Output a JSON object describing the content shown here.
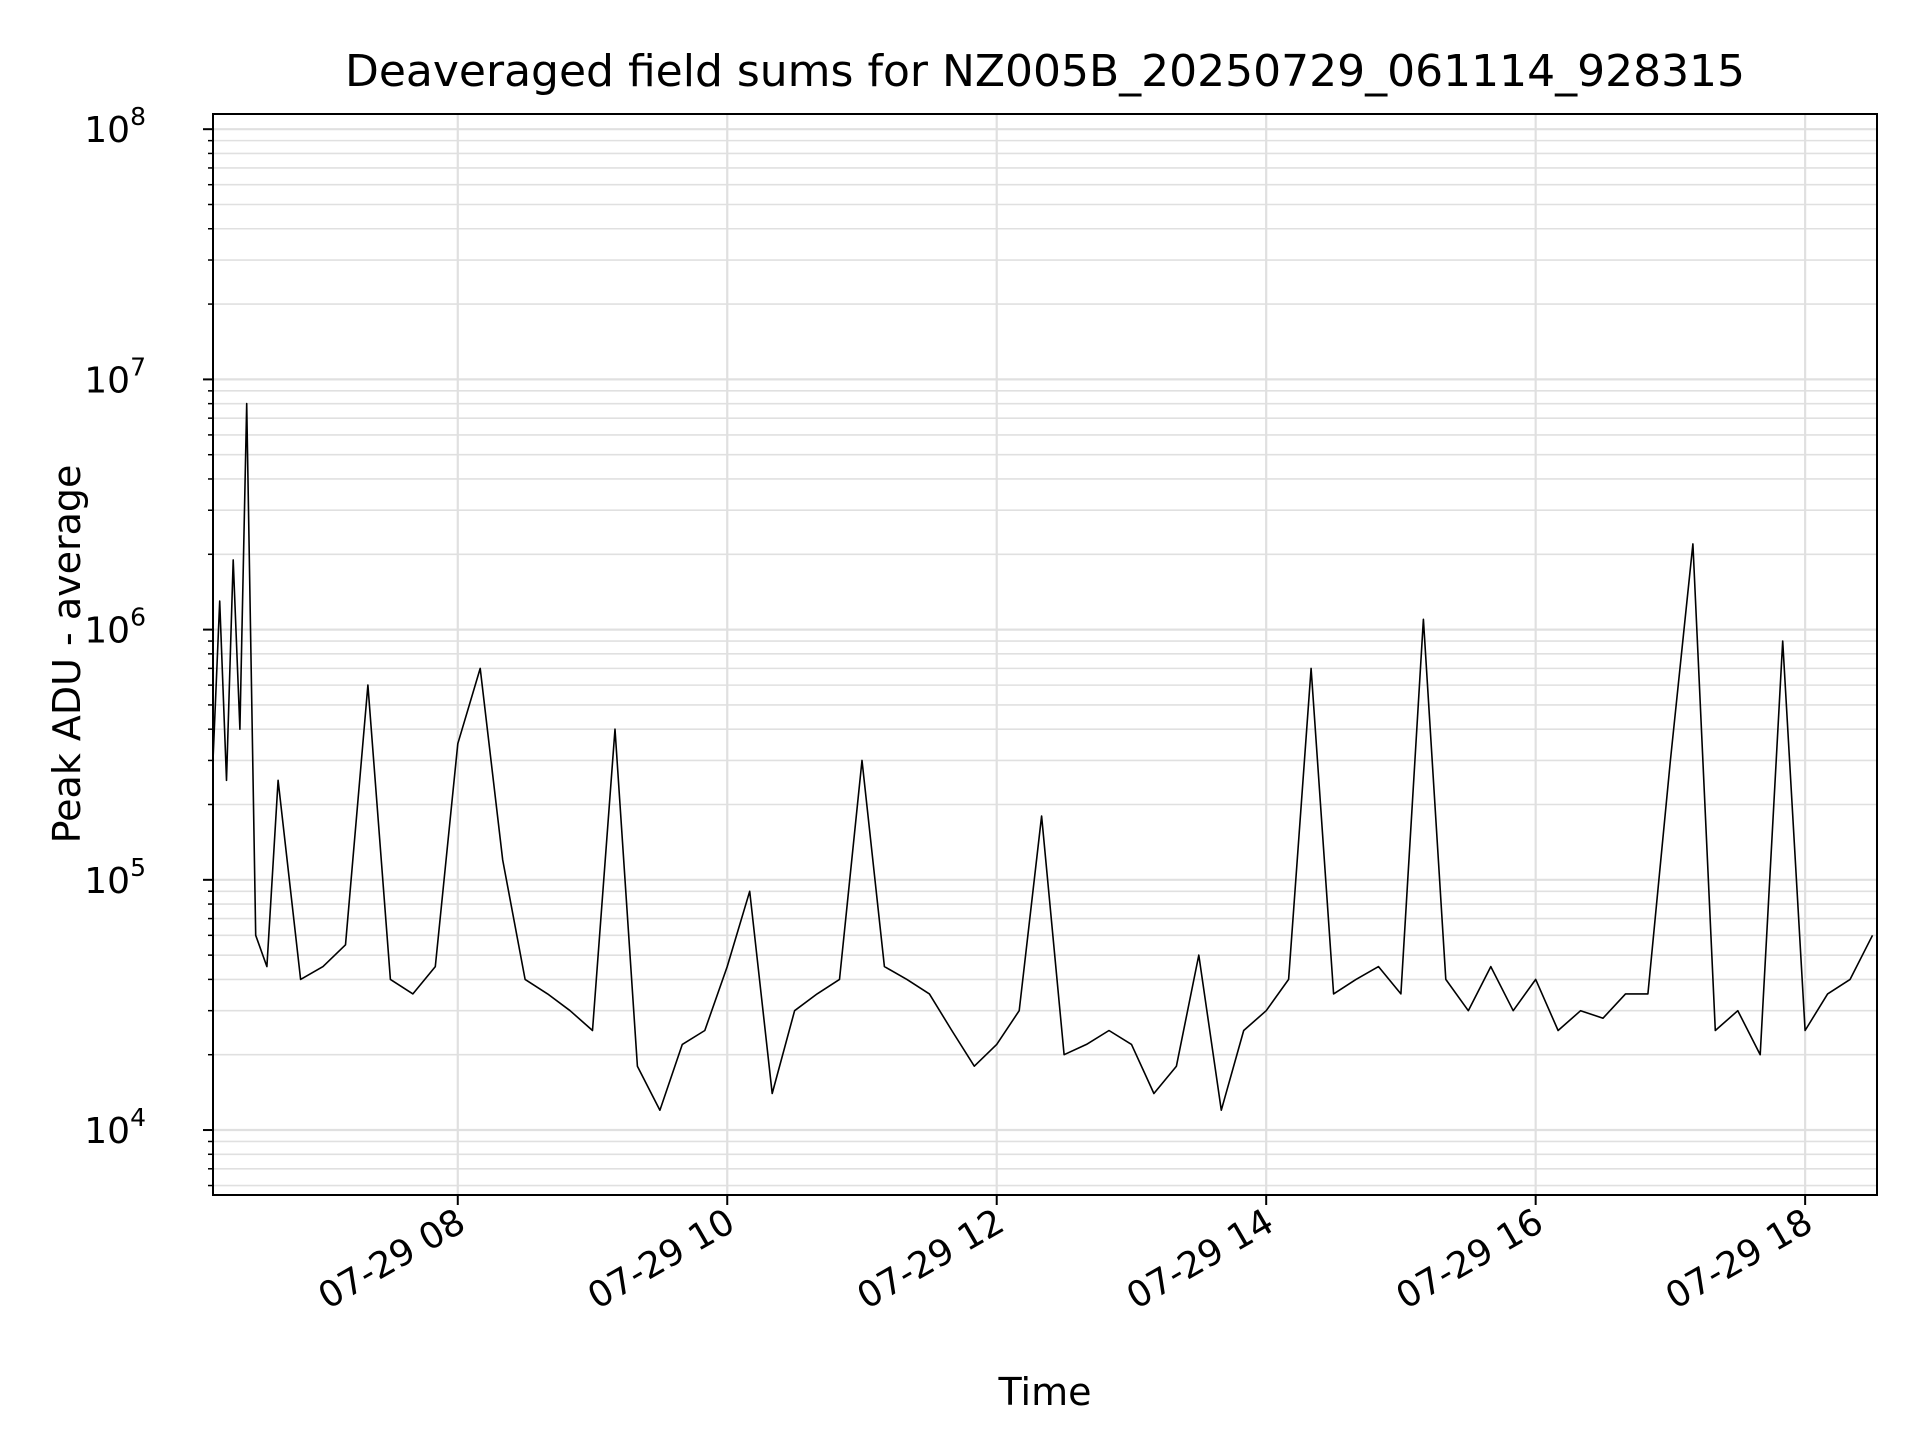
{
  "chart_data": {
    "type": "line",
    "title": "Deaveraged field sums for NZ005B_20250729_061114_928315",
    "xlabel": "Time",
    "ylabel": "Peak ADU - average",
    "yscale": "log",
    "ylim": [
      5500,
      115000000
    ],
    "xlim": [
      "2025-07-29 06:11",
      "2025-07-29 18:32"
    ],
    "grid": true,
    "line_color": "#000000",
    "grid_color": "#e0e0e0",
    "x_ticks": [
      {
        "value": "2025-07-29 08:00",
        "label": "07-29 08"
      },
      {
        "value": "2025-07-29 10:00",
        "label": "07-29 10"
      },
      {
        "value": "2025-07-29 12:00",
        "label": "07-29 12"
      },
      {
        "value": "2025-07-29 14:00",
        "label": "07-29 14"
      },
      {
        "value": "2025-07-29 16:00",
        "label": "07-29 16"
      },
      {
        "value": "2025-07-29 18:00",
        "label": "07-29 18"
      }
    ],
    "y_ticks": [
      {
        "value": 10000,
        "base": "10",
        "exp": "4"
      },
      {
        "value": 100000,
        "base": "10",
        "exp": "5"
      },
      {
        "value": 1000000,
        "base": "10",
        "exp": "6"
      },
      {
        "value": 10000000,
        "base": "10",
        "exp": "7"
      },
      {
        "value": 100000000,
        "base": "10",
        "exp": "8"
      }
    ],
    "series": [
      {
        "color": "#000000",
        "x": [
          "2025-07-29 06:11",
          "2025-07-29 06:14",
          "2025-07-29 06:17",
          "2025-07-29 06:20",
          "2025-07-29 06:23",
          "2025-07-29 06:26",
          "2025-07-29 06:30",
          "2025-07-29 06:35",
          "2025-07-29 06:40",
          "2025-07-29 06:50",
          "2025-07-29 07:00",
          "2025-07-29 07:10",
          "2025-07-29 07:20",
          "2025-07-29 07:30",
          "2025-07-29 07:40",
          "2025-07-29 07:50",
          "2025-07-29 08:00",
          "2025-07-29 08:10",
          "2025-07-29 08:20",
          "2025-07-29 08:30",
          "2025-07-29 08:40",
          "2025-07-29 08:50",
          "2025-07-29 09:00",
          "2025-07-29 09:10",
          "2025-07-29 09:20",
          "2025-07-29 09:30",
          "2025-07-29 09:40",
          "2025-07-29 09:50",
          "2025-07-29 10:00",
          "2025-07-29 10:10",
          "2025-07-29 10:20",
          "2025-07-29 10:30",
          "2025-07-29 10:40",
          "2025-07-29 10:50",
          "2025-07-29 11:00",
          "2025-07-29 11:10",
          "2025-07-29 11:20",
          "2025-07-29 11:30",
          "2025-07-29 11:40",
          "2025-07-29 11:50",
          "2025-07-29 12:00",
          "2025-07-29 12:10",
          "2025-07-29 12:20",
          "2025-07-29 12:30",
          "2025-07-29 12:40",
          "2025-07-29 12:50",
          "2025-07-29 13:00",
          "2025-07-29 13:10",
          "2025-07-29 13:20",
          "2025-07-29 13:30",
          "2025-07-29 13:40",
          "2025-07-29 13:50",
          "2025-07-29 14:00",
          "2025-07-29 14:10",
          "2025-07-29 14:20",
          "2025-07-29 14:30",
          "2025-07-29 14:40",
          "2025-07-29 14:50",
          "2025-07-29 15:00",
          "2025-07-29 15:10",
          "2025-07-29 15:20",
          "2025-07-29 15:30",
          "2025-07-29 15:40",
          "2025-07-29 15:50",
          "2025-07-29 16:00",
          "2025-07-29 16:10",
          "2025-07-29 16:20",
          "2025-07-29 16:30",
          "2025-07-29 16:40",
          "2025-07-29 16:50",
          "2025-07-29 17:00",
          "2025-07-29 17:10",
          "2025-07-29 17:20",
          "2025-07-29 17:30",
          "2025-07-29 17:40",
          "2025-07-29 17:50",
          "2025-07-29 18:00",
          "2025-07-29 18:10",
          "2025-07-29 18:20",
          "2025-07-29 18:30"
        ],
        "y": [
          300000,
          1300000,
          250000,
          1900000,
          400000,
          8000000,
          60000,
          45000,
          250000,
          40000,
          45000,
          55000,
          600000,
          40000,
          35000,
          45000,
          350000,
          700000,
          120000,
          40000,
          35000,
          30000,
          25000,
          400000,
          18000,
          12000,
          22000,
          25000,
          45000,
          90000,
          14000,
          30000,
          35000,
          40000,
          300000,
          45000,
          40000,
          35000,
          25000,
          18000,
          22000,
          30000,
          180000,
          20000,
          22000,
          25000,
          22000,
          14000,
          18000,
          50000,
          12000,
          25000,
          30000,
          40000,
          700000,
          35000,
          40000,
          45000,
          35000,
          1100000,
          40000,
          30000,
          45000,
          30000,
          40000,
          25000,
          30000,
          28000,
          35000,
          35000,
          300000,
          2200000,
          25000,
          30000,
          20000,
          900000,
          25000,
          35000,
          40000,
          60000
        ]
      }
    ]
  }
}
